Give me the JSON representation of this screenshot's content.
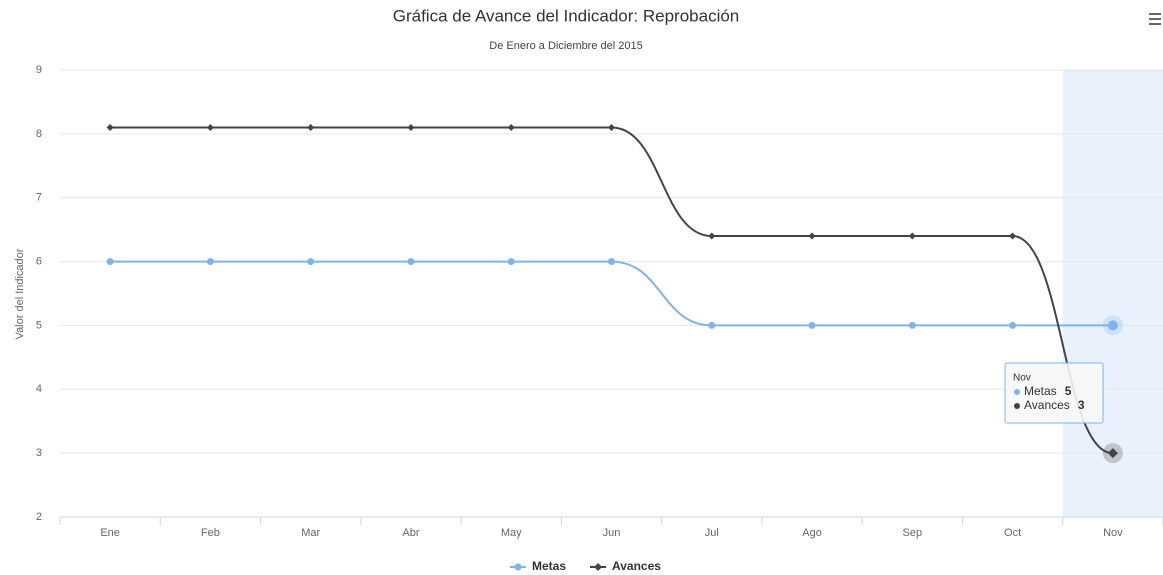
{
  "chart_data": {
    "type": "line",
    "title": "Gráfica de Avance del Indicador: Reprobación",
    "subtitle": "De Enero a Diciembre del 2015",
    "y_axis_label": "Valor del Indicador",
    "categories": [
      "Ene",
      "Feb",
      "Mar",
      "Abr",
      "May",
      "Jun",
      "Jul",
      "Ago",
      "Sep",
      "Oct",
      "Nov"
    ],
    "series": [
      {
        "name": "Metas",
        "color": "#7cb5ec",
        "marker": "circle",
        "values": [
          6,
          6,
          6,
          6,
          6,
          6,
          5,
          5,
          5,
          5,
          5
        ]
      },
      {
        "name": "Avances",
        "color": "#434348",
        "marker": "diamond",
        "values": [
          8.1,
          8.1,
          8.1,
          8.1,
          8.1,
          8.1,
          6.4,
          6.4,
          6.4,
          6.4,
          3
        ]
      }
    ],
    "ylim": [
      2,
      9
    ],
    "yticks": [
      2,
      3,
      4,
      5,
      6,
      7,
      8,
      9
    ],
    "grid": true,
    "legend": "bottom",
    "highlight_index": 10
  }
}
